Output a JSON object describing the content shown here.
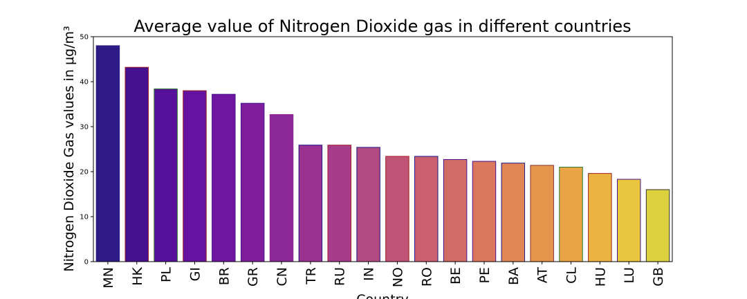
{
  "chart_data": {
    "type": "bar",
    "title": "Average value of Nitrogen Dioxide gas in different countries",
    "xlabel": "Country",
    "ylabel": "Nitrogen Dioxide Gas values in μg/m³",
    "ylim": [
      0,
      50
    ],
    "yticks": [
      "0",
      "10",
      "20",
      "30",
      "40",
      "50"
    ],
    "grid": false,
    "categories": [
      "MN",
      "HK",
      "PL",
      "GI",
      "BR",
      "GR",
      "CN",
      "TR",
      "RU",
      "IN",
      "NO",
      "RO",
      "BE",
      "PE",
      "BA",
      "AT",
      "CL",
      "HU",
      "LU",
      "GB"
    ],
    "values": [
      48.0,
      43.2,
      38.4,
      38.0,
      37.2,
      35.2,
      32.7,
      25.9,
      25.9,
      25.4,
      23.4,
      23.4,
      22.7,
      22.3,
      21.9,
      21.4,
      21.0,
      19.6,
      18.3,
      16.0
    ],
    "colors": [
      "#2e1b86",
      "#451190",
      "#56119a",
      "#6413a0",
      "#6f16a0",
      "#7e1e9c",
      "#8c2797",
      "#9a3292",
      "#a63c8a",
      "#b34a81",
      "#bf5478",
      "#c95f6f",
      "#d16b66",
      "#d9785c",
      "#e08554",
      "#e5954c",
      "#e9a545",
      "#ebb33f",
      "#e8c63e",
      "#dcd23f"
    ],
    "edge_colors": [
      "#2e1b86",
      "#a02020",
      "#2a7a2a",
      "#a02020",
      "#451190",
      "#451190",
      "#8c2797",
      "#1a1a8a",
      "#a02020",
      "#1a1a8a",
      "#a02020",
      "#1a1a8a",
      "#451190",
      "#451190",
      "#1a1a8a",
      "#8a3030",
      "#2a7a2a",
      "#a02020",
      "#451190",
      "#333333"
    ]
  }
}
